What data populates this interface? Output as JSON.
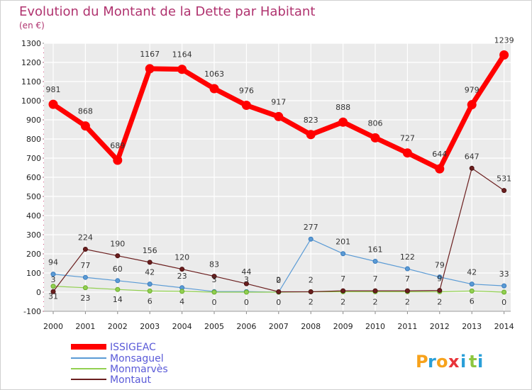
{
  "chart_data": {
    "type": "line",
    "title": "Evolution du Montant de la Dette par Habitant",
    "unit": "(en €)",
    "x": [
      "2000",
      "2001",
      "2002",
      "2003",
      "2004",
      "2005",
      "2006",
      "2007",
      "2008",
      "2009",
      "2010",
      "2011",
      "2012",
      "2013",
      "2014"
    ],
    "ylim": [
      -100,
      1300
    ],
    "yticks": [
      -100,
      0,
      100,
      200,
      300,
      400,
      500,
      600,
      700,
      800,
      900,
      1000,
      1100,
      1200,
      1300
    ],
    "grid": true,
    "legend_position": "bottom-left",
    "series": [
      {
        "name": "ISSIGEAC",
        "color": "#ff0000",
        "values": [
          981,
          868,
          689,
          1167,
          1164,
          1063,
          976,
          917,
          823,
          888,
          806,
          727,
          644,
          979,
          1239
        ]
      },
      {
        "name": "Monsaguel",
        "color": "#5b9bd5",
        "values": [
          94,
          77,
          60,
          42,
          23,
          3,
          3,
          0,
          277,
          201,
          161,
          122,
          79,
          42,
          33
        ]
      },
      {
        "name": "Monmarvès",
        "color": "#92d050",
        "values": [
          31,
          23,
          14,
          6,
          4,
          0,
          0,
          0,
          2,
          2,
          2,
          2,
          2,
          6,
          0
        ]
      },
      {
        "name": "Montaut",
        "color": "#6b1f1f",
        "values": [
          3,
          224,
          190,
          156,
          120,
          83,
          44,
          2,
          2,
          7,
          7,
          7,
          9,
          647,
          531
        ]
      }
    ]
  },
  "brand": {
    "letters": [
      "P",
      "r",
      "o",
      "x",
      "i",
      "t",
      "i"
    ],
    "colors": [
      "#f7a21b",
      "#2a9fd8",
      "#f7a21b",
      "#e8343a",
      "#2a9fd8",
      "#8cc63f",
      "#2a9fd8"
    ]
  }
}
